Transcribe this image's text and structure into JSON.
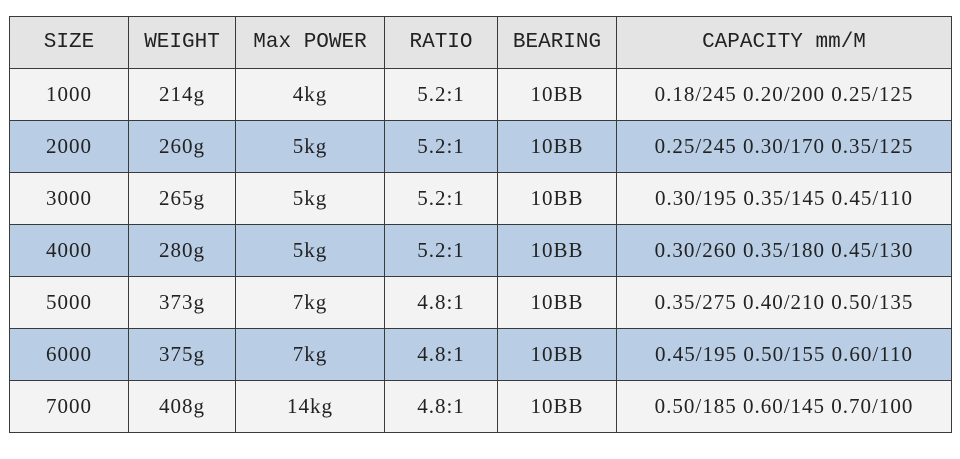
{
  "table": {
    "header": [
      "SIZE",
      "WEIGHT",
      "Max POWER",
      "RATIO",
      "BEARING",
      "CAPACITY mm/M"
    ],
    "rows": [
      [
        "1000",
        "214g",
        "4kg",
        "5.2:1",
        "10BB",
        "0.18/245 0.20/200 0.25/125"
      ],
      [
        "2000",
        "260g",
        "5kg",
        "5.2:1",
        "10BB",
        "0.25/245 0.30/170 0.35/125"
      ],
      [
        "3000",
        "265g",
        "5kg",
        "5.2:1",
        "10BB",
        "0.30/195 0.35/145 0.45/110"
      ],
      [
        "4000",
        "280g",
        "5kg",
        "5.2:1",
        "10BB",
        "0.30/260 0.35/180 0.45/130"
      ],
      [
        "5000",
        "373g",
        "7kg",
        "4.8:1",
        "10BB",
        "0.35/275 0.40/210 0.50/135"
      ],
      [
        "6000",
        "375g",
        "7kg",
        "4.8:1",
        "10BB",
        "0.45/195 0.50/155 0.60/110"
      ],
      [
        "7000",
        "408g",
        "14kg",
        "4.8:1",
        "10BB",
        "0.50/185 0.60/145 0.70/100"
      ]
    ]
  }
}
